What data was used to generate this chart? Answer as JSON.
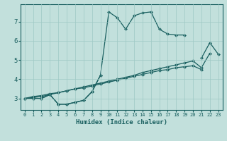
{
  "background_color": "#c2e0dc",
  "grid_color": "#9ec8c4",
  "line_color": "#1a6060",
  "xlabel": "Humidex (Indice chaleur)",
  "xlim": [
    -0.5,
    23.5
  ],
  "ylim": [
    2.4,
    7.9
  ],
  "yticks": [
    3,
    4,
    5,
    6,
    7
  ],
  "xticks": [
    0,
    1,
    2,
    3,
    4,
    5,
    6,
    7,
    8,
    9,
    10,
    11,
    12,
    13,
    14,
    15,
    16,
    17,
    18,
    19,
    20,
    21,
    22,
    23
  ],
  "line1_x": [
    0,
    1,
    2,
    3,
    4,
    5,
    6,
    7,
    8,
    9,
    10,
    11,
    12,
    13,
    14,
    15,
    16,
    17,
    18,
    19
  ],
  "line1_y": [
    3.0,
    3.0,
    3.0,
    3.2,
    2.7,
    2.7,
    2.8,
    2.9,
    3.35,
    4.2,
    7.5,
    7.2,
    6.6,
    7.3,
    7.45,
    7.5,
    6.6,
    6.35,
    6.3,
    6.3
  ],
  "line2_x": [
    0,
    1,
    2,
    3,
    4,
    5,
    6,
    7,
    8,
    9,
    21,
    22,
    23
  ],
  "line2_y": [
    3.0,
    3.0,
    3.0,
    3.2,
    2.7,
    2.7,
    2.8,
    2.9,
    3.35,
    4.2,
    5.1,
    5.9,
    5.3
  ],
  "line3_x": [
    0,
    1,
    2,
    3,
    4,
    5,
    6,
    7,
    8,
    9,
    10,
    11,
    12,
    13,
    14,
    15,
    16,
    17,
    18,
    19,
    20,
    21
  ],
  "line3_y": [
    3.0,
    3.1,
    3.15,
    3.25,
    3.3,
    3.4,
    3.5,
    3.55,
    3.65,
    3.75,
    3.85,
    3.95,
    4.05,
    4.15,
    4.25,
    4.35,
    4.45,
    4.5,
    4.6,
    4.65,
    4.7,
    4.5
  ],
  "line4_x": [
    0,
    1,
    2,
    3,
    4,
    5,
    6,
    7,
    8,
    9,
    10,
    11,
    12,
    13,
    14,
    15,
    16,
    17,
    18,
    19,
    20,
    21,
    22
  ],
  "line4_y": [
    3.0,
    3.05,
    3.1,
    3.2,
    3.3,
    3.4,
    3.5,
    3.6,
    3.7,
    3.8,
    3.9,
    4.0,
    4.1,
    4.2,
    4.35,
    4.45,
    4.55,
    4.65,
    4.75,
    4.85,
    4.95,
    4.6,
    5.35
  ]
}
